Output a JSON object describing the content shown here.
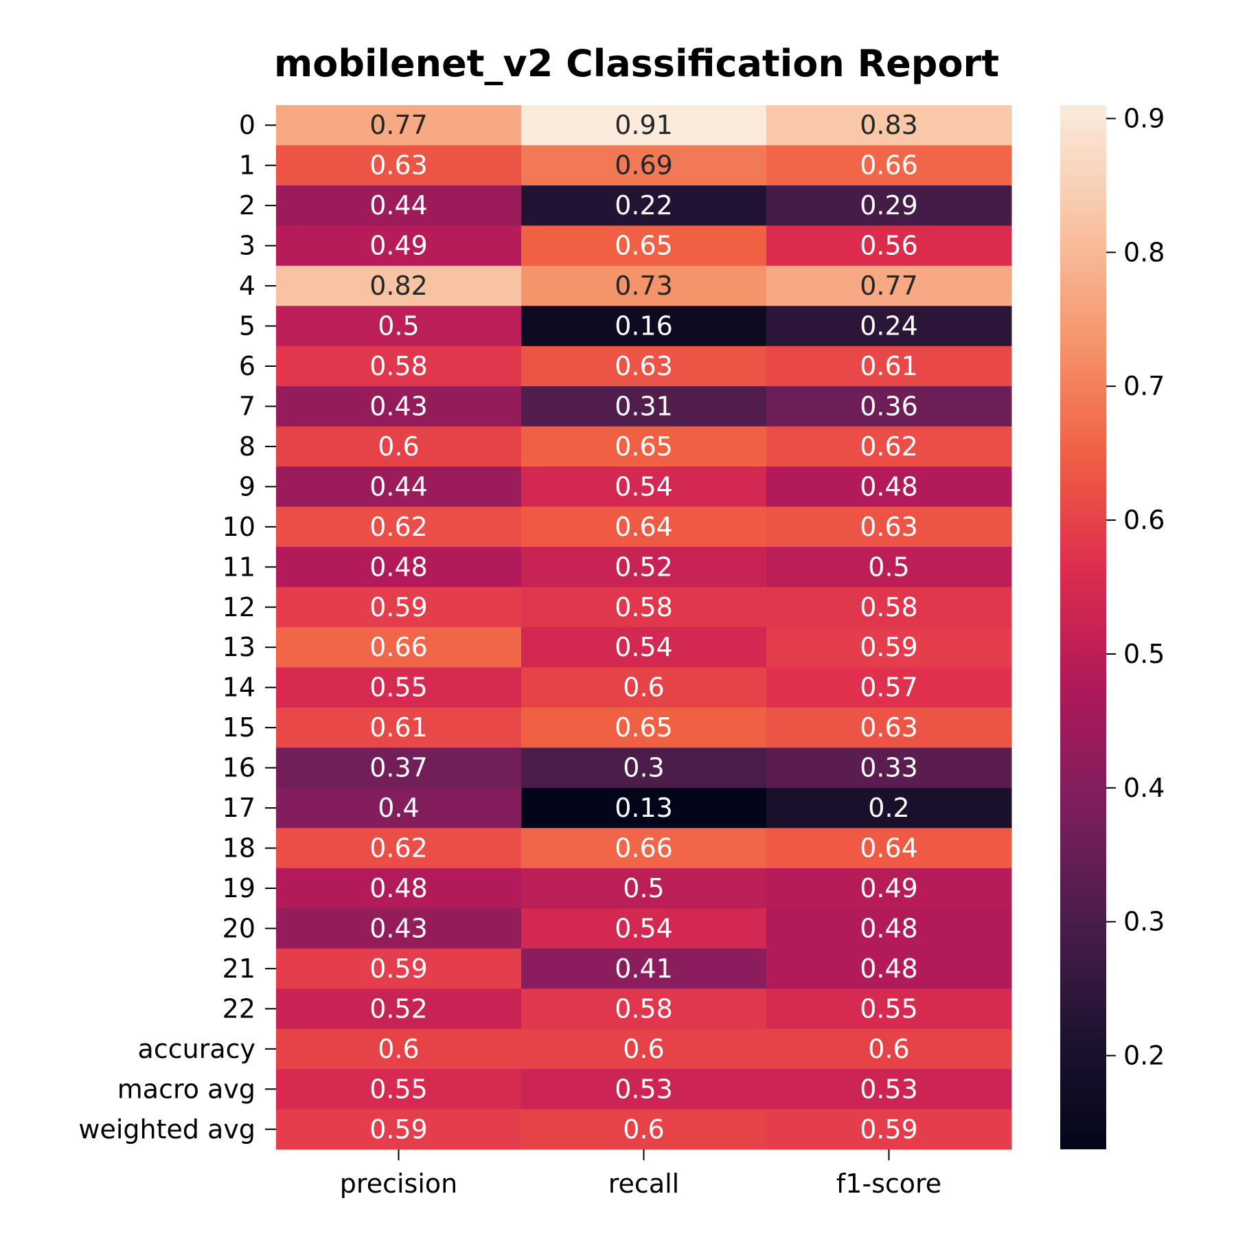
{
  "chart_data": {
    "type": "heatmap",
    "title": "mobilenet_v2 Classification Report",
    "xlabel": "",
    "ylabel": "",
    "columns": [
      "precision",
      "recall",
      "f1-score"
    ],
    "rows": [
      "0",
      "1",
      "2",
      "3",
      "4",
      "5",
      "6",
      "7",
      "8",
      "9",
      "10",
      "11",
      "12",
      "13",
      "14",
      "15",
      "16",
      "17",
      "18",
      "19",
      "20",
      "21",
      "22",
      "accuracy",
      "macro avg",
      "weighted avg"
    ],
    "values": [
      [
        0.77,
        0.91,
        0.83
      ],
      [
        0.63,
        0.69,
        0.66
      ],
      [
        0.44,
        0.22,
        0.29
      ],
      [
        0.49,
        0.65,
        0.56
      ],
      [
        0.82,
        0.73,
        0.77
      ],
      [
        0.5,
        0.16,
        0.24
      ],
      [
        0.58,
        0.63,
        0.61
      ],
      [
        0.43,
        0.31,
        0.36
      ],
      [
        0.6,
        0.65,
        0.62
      ],
      [
        0.44,
        0.54,
        0.48
      ],
      [
        0.62,
        0.64,
        0.63
      ],
      [
        0.48,
        0.52,
        0.5
      ],
      [
        0.59,
        0.58,
        0.58
      ],
      [
        0.66,
        0.54,
        0.59
      ],
      [
        0.55,
        0.6,
        0.57
      ],
      [
        0.61,
        0.65,
        0.63
      ],
      [
        0.37,
        0.3,
        0.33
      ],
      [
        0.4,
        0.13,
        0.2
      ],
      [
        0.62,
        0.66,
        0.64
      ],
      [
        0.48,
        0.5,
        0.49
      ],
      [
        0.43,
        0.54,
        0.48
      ],
      [
        0.59,
        0.41,
        0.48
      ],
      [
        0.52,
        0.58,
        0.55
      ],
      [
        0.6,
        0.6,
        0.6
      ],
      [
        0.55,
        0.53,
        0.53
      ],
      [
        0.59,
        0.6,
        0.59
      ]
    ],
    "colorbar": {
      "vmin": 0.13,
      "vmax": 0.91,
      "ticks": [
        0.2,
        0.3,
        0.4,
        0.5,
        0.6,
        0.7,
        0.8,
        0.9
      ],
      "tick_labels": [
        "0.2",
        "0.3",
        "0.4",
        "0.5",
        "0.6",
        "0.7",
        "0.8",
        "0.9"
      ],
      "colormap": "rocket"
    },
    "colors": {
      "colormap_stops": [
        "#03051a",
        "#1f1330",
        "#4c1d4b",
        "#7e1e5c",
        "#b0195a",
        "#de2d4e",
        "#f06043",
        "#f5976d",
        "#f8c5a5",
        "#faebdd"
      ],
      "light_text": "#ffffff",
      "dark_text": "#262626",
      "axis": "#000000"
    },
    "grid": false,
    "legend": "colorbar-right"
  }
}
